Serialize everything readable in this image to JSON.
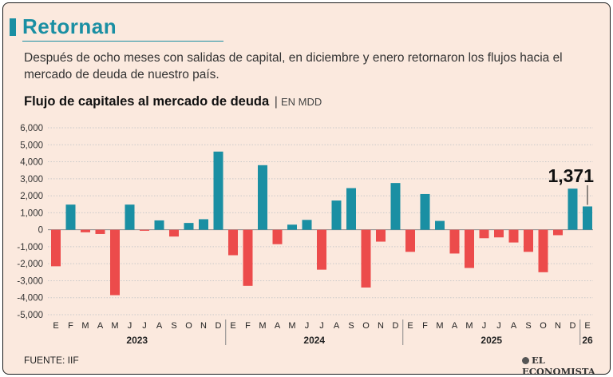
{
  "header": {
    "title": "Retornan",
    "subtitle": "Después de ocho meses con salidas de capital, en diciembre y enero retornaron los flujos hacia el mercado de deuda de nuestro país.",
    "chart_title": "Flujo de capitales al mercado de deuda",
    "unit": "EN MDD"
  },
  "footer": {
    "source": "FUENTE: IIF",
    "logo_text": "EL ECONOMISTA"
  },
  "colors": {
    "positive": "#1a8fa3",
    "negative": "#ec4b4b",
    "title": "#1a8fa3",
    "background": "#fbe9de"
  },
  "chart_data": {
    "type": "bar",
    "title": "Flujo de capitales al mercado de deuda",
    "ylabel": "EN MDD",
    "ylim": [
      -5000,
      6000
    ],
    "yticks": [
      6000,
      5000,
      4000,
      3000,
      2000,
      1000,
      0,
      -1000,
      -2000,
      -3000,
      -4000,
      -5000
    ],
    "ytick_labels": [
      "6,000",
      "5,000",
      "4,000",
      "3,000",
      "2,000",
      "1,000",
      "0",
      "-1,000",
      "-2,000",
      "-3,000",
      "-4,000",
      "-5,000"
    ],
    "categories": [
      "E",
      "F",
      "M",
      "A",
      "M",
      "J",
      "J",
      "A",
      "S",
      "O",
      "N",
      "D",
      "E",
      "F",
      "M",
      "A",
      "M",
      "J",
      "J",
      "A",
      "S",
      "O",
      "N",
      "D",
      "E",
      "F",
      "M",
      "A",
      "M",
      "J",
      "J",
      "A",
      "S",
      "O",
      "N",
      "D",
      "E"
    ],
    "values": [
      -2150,
      1480,
      -150,
      -250,
      -3850,
      1480,
      -60,
      550,
      -400,
      400,
      620,
      4600,
      -1500,
      -3300,
      3800,
      -850,
      300,
      580,
      -2350,
      1720,
      2450,
      -3400,
      -700,
      2750,
      -1300,
      2100,
      520,
      -1400,
      -2250,
      -500,
      -450,
      -750,
      -1300,
      -2500,
      -320,
      2420,
      1371
    ],
    "years": [
      {
        "label": "2023",
        "start": 0,
        "end": 11
      },
      {
        "label": "2024",
        "start": 12,
        "end": 23
      },
      {
        "label": "2025",
        "start": 24,
        "end": 35
      },
      {
        "label": "26",
        "start": 36,
        "end": 36
      }
    ],
    "annotation": {
      "index": 36,
      "label": "1,371"
    }
  }
}
